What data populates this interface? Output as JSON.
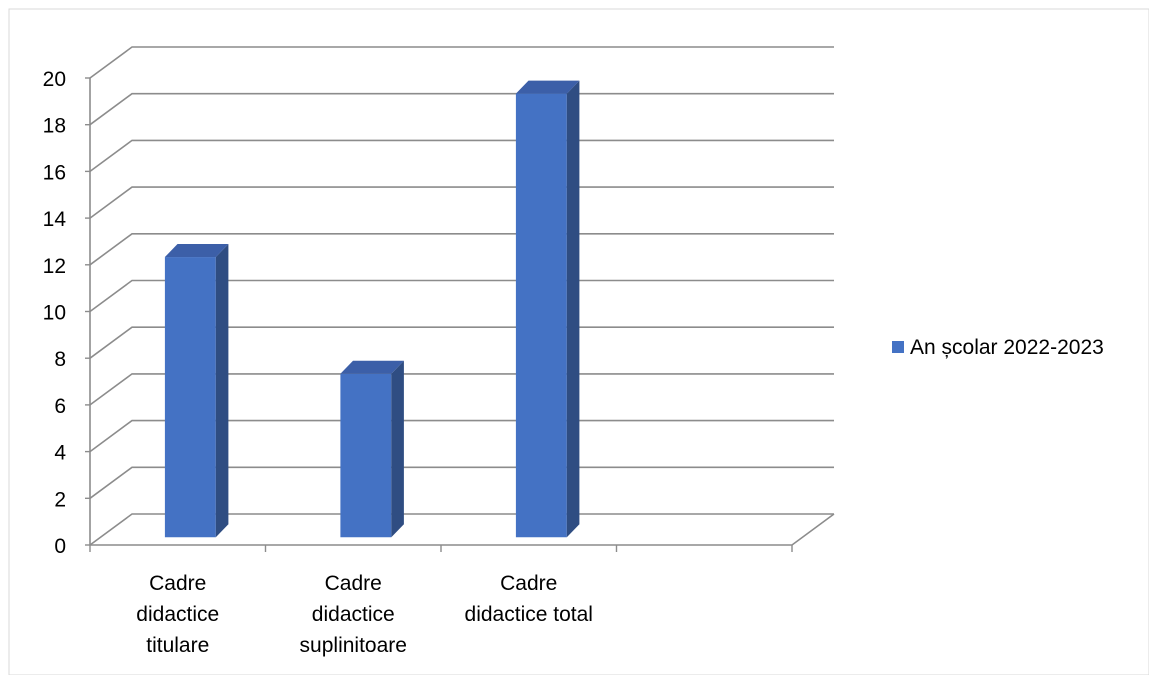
{
  "chart_data": {
    "type": "bar",
    "style": "3d-column",
    "categories": [
      [
        "Cadre",
        "didactice",
        "titulare"
      ],
      [
        "Cadre",
        "didactice",
        "suplinitoare"
      ],
      [
        "Cadre",
        "didactice total"
      ]
    ],
    "empty_category_slots": 1,
    "series": [
      {
        "name": "An școlar 2022-2023",
        "values": [
          12,
          7,
          19
        ],
        "color": "#4472C4",
        "side_color": "#2F4D82",
        "top_color": "#3C5FA8"
      }
    ],
    "ylim": [
      0,
      20
    ],
    "yticks": [
      "0",
      "2",
      "4",
      "6",
      "8",
      "10",
      "12",
      "14",
      "16",
      "18",
      "20"
    ],
    "grid": true,
    "legend": "right",
    "grid_color": "#8C8C8C"
  }
}
